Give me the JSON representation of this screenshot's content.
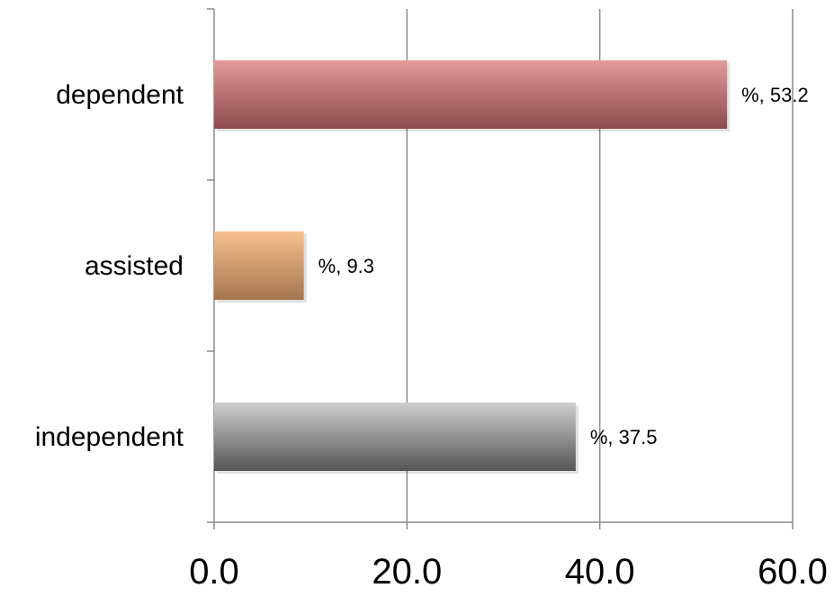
{
  "chart_data": {
    "type": "bar",
    "orientation": "horizontal",
    "categories": [
      "dependent",
      "assisted",
      "independent"
    ],
    "values": [
      53.2,
      9.3,
      37.5
    ],
    "data_labels": [
      "%, 53.2",
      "%, 9.3",
      "%, 37.5"
    ],
    "bar_colors": [
      "#c46f6f",
      "#d9a070",
      "#8c8c8c"
    ],
    "x_ticks": [
      "0.0",
      "20.0",
      "40.0",
      "60.0"
    ],
    "xlim": [
      0,
      60
    ],
    "grid": "vertical major gridlines",
    "legend": "none",
    "title": "",
    "xlabel": "",
    "ylabel": ""
  }
}
